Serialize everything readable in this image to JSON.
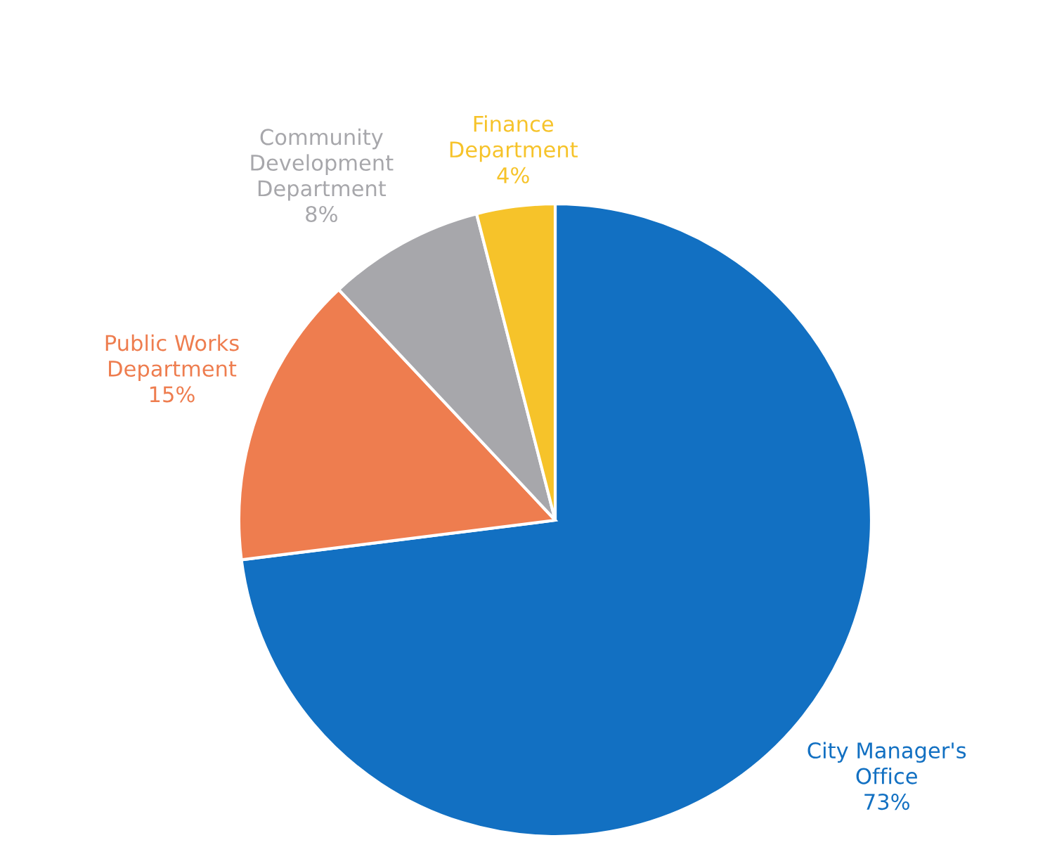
{
  "chart_data": {
    "type": "pie",
    "categories": [
      "City Manager's Office",
      "Public Works Department",
      "Community Development Department",
      "Finance Department"
    ],
    "values": [
      73,
      15,
      8,
      4
    ],
    "value_labels": [
      "73%",
      "15%",
      "8%",
      "4%"
    ],
    "colors": [
      "#1270c2",
      "#ee7d4f",
      "#a7a7ab",
      "#f6c32a"
    ],
    "legend": false
  }
}
